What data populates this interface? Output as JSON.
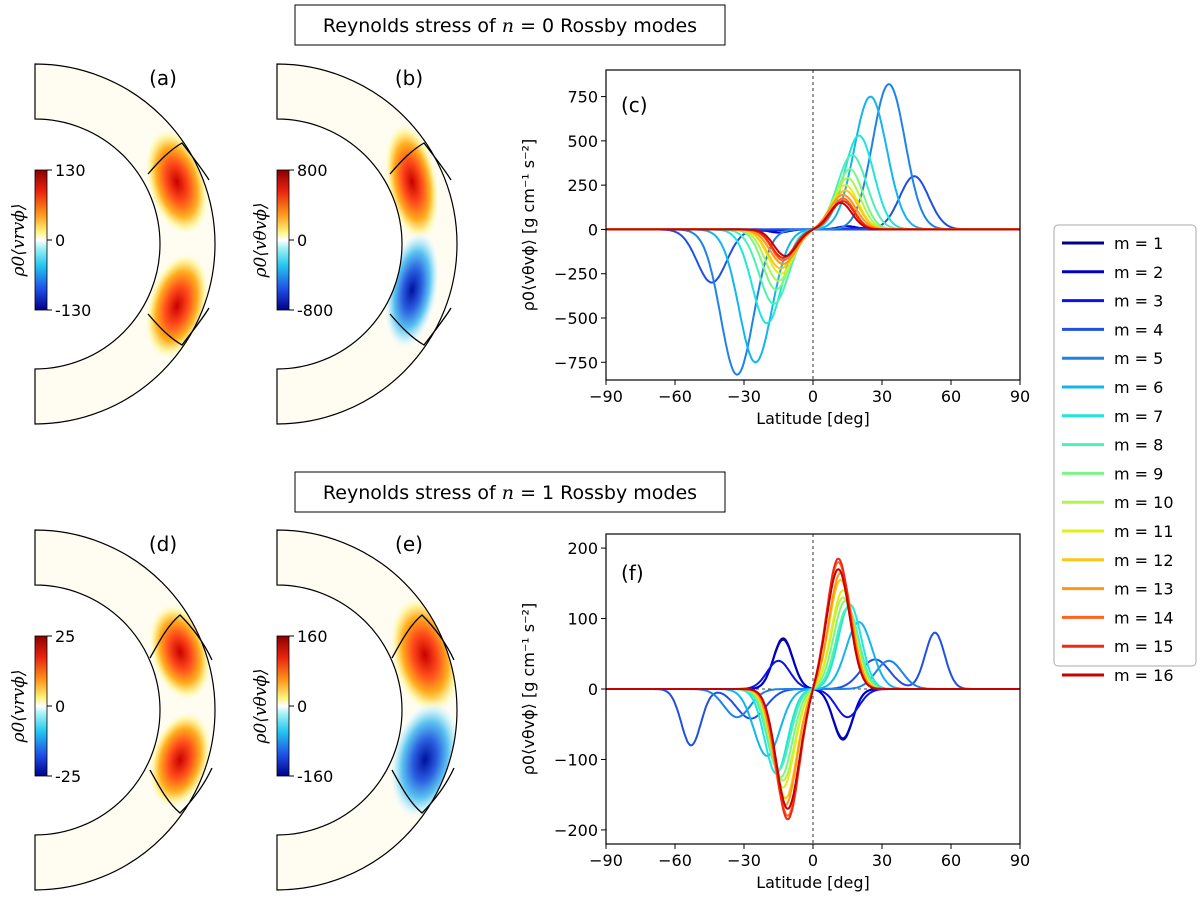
{
  "titles": {
    "top": [
      "Reynolds stress of ",
      "n",
      " = 0 Rossby modes"
    ],
    "bottom": [
      "Reynolds stress of ",
      "n",
      " = 1 Rossby modes"
    ]
  },
  "panels": {
    "a": {
      "label": "(a)",
      "cbar_label": "ρ0⟨vrvϕ⟩",
      "cbar_max": "130",
      "cbar_mid": "0",
      "cbar_min": "-130"
    },
    "b": {
      "label": "(b)",
      "cbar_label": "ρ0⟨vθvϕ⟩",
      "cbar_max": "800",
      "cbar_mid": "0",
      "cbar_min": "-800"
    },
    "c": {
      "label": "(c)"
    },
    "d": {
      "label": "(d)",
      "cbar_label": "ρ0⟨vrvϕ⟩",
      "cbar_max": "25",
      "cbar_mid": "0",
      "cbar_min": "-25"
    },
    "e": {
      "label": "(e)",
      "cbar_label": "ρ0⟨vθvϕ⟩",
      "cbar_max": "160",
      "cbar_mid": "0",
      "cbar_min": "-160"
    },
    "f": {
      "label": "(f)"
    }
  },
  "colors": [
    "#00008b",
    "#0000c8",
    "#0a14e6",
    "#1e50e6",
    "#1e82e8",
    "#14b4ef",
    "#1ee6dc",
    "#4cf0b4",
    "#7cf584",
    "#aef550",
    "#e2ee14",
    "#ffc514",
    "#ff9614",
    "#ff641e",
    "#f02814",
    "#c80000"
  ],
  "chart_data": [
    {
      "type": "line",
      "panel": "(c)",
      "xlabel": "Latitude [deg]",
      "ylabel": "ρ0⟨vθvϕ⟩ [g cm⁻¹ s⁻²]",
      "xlim": [
        -90,
        90
      ],
      "ylim": [
        -850,
        900
      ],
      "xticks": [
        -90,
        -60,
        -30,
        0,
        30,
        60,
        90
      ],
      "yticks": [
        -750,
        -500,
        -250,
        0,
        250,
        500,
        750
      ],
      "series": [
        {
          "name": "m = 1",
          "peak": 0,
          "peak_lat": 18,
          "width": 6
        },
        {
          "name": "m = 2",
          "peak": 18,
          "peak_lat": 15,
          "width": 6
        },
        {
          "name": "m = 3",
          "peak": 8,
          "peak_lat": 20,
          "width": 7
        },
        {
          "name": "m = 4",
          "peak": 300,
          "peak_lat": 44,
          "width": 9
        },
        {
          "name": "m = 5",
          "peak": 820,
          "peak_lat": 33,
          "width": 10
        },
        {
          "name": "m = 6",
          "peak": 750,
          "peak_lat": 25,
          "width": 10
        },
        {
          "name": "m = 7",
          "peak": 530,
          "peak_lat": 20,
          "width": 9
        },
        {
          "name": "m = 8",
          "peak": 420,
          "peak_lat": 17,
          "width": 9
        },
        {
          "name": "m = 9",
          "peak": 340,
          "peak_lat": 16,
          "width": 8
        },
        {
          "name": "m = 10",
          "peak": 290,
          "peak_lat": 15,
          "width": 8
        },
        {
          "name": "m = 11",
          "peak": 250,
          "peak_lat": 14,
          "width": 8
        },
        {
          "name": "m = 12",
          "peak": 220,
          "peak_lat": 14,
          "width": 8
        },
        {
          "name": "m = 13",
          "peak": 195,
          "peak_lat": 13,
          "width": 8
        },
        {
          "name": "m = 14",
          "peak": 175,
          "peak_lat": 13,
          "width": 7
        },
        {
          "name": "m = 15",
          "peak": 160,
          "peak_lat": 13,
          "width": 7
        },
        {
          "name": "m = 16",
          "peak": 150,
          "peak_lat": 12,
          "width": 7
        }
      ]
    },
    {
      "type": "line",
      "panel": "(f)",
      "xlabel": "Latitude [deg]",
      "ylabel": "ρ0⟨vθvϕ⟩ [g cm⁻¹ s⁻²]",
      "xlim": [
        -90,
        90
      ],
      "ylim": [
        -220,
        220
      ],
      "xticks": [
        -90,
        -60,
        -30,
        0,
        30,
        60,
        90
      ],
      "yticks": [
        -200,
        -100,
        0,
        100,
        200
      ],
      "series": [
        {
          "name": "m = 1",
          "peak": -72,
          "peak_lat": 13,
          "width": 6
        },
        {
          "name": "m = 2",
          "peak": -70,
          "peak_lat": 13,
          "width": 6
        },
        {
          "name": "m = 3",
          "peak": -40,
          "peak_lat": 15,
          "width": 7
        },
        {
          "name": "m = 4",
          "peak": 80,
          "peak_lat": 53,
          "width": 6,
          "peak2": 42,
          "peak2_lat": 27,
          "width2": 9
        },
        {
          "name": "m = 5",
          "peak": 40,
          "peak_lat": 33,
          "width": 8
        },
        {
          "name": "m = 6",
          "peak": 95,
          "peak_lat": 20,
          "width": 8
        },
        {
          "name": "m = 7",
          "peak": 120,
          "peak_lat": 16,
          "width": 7
        },
        {
          "name": "m = 8",
          "peak": 115,
          "peak_lat": 15,
          "width": 7
        },
        {
          "name": "m = 9",
          "peak": 125,
          "peak_lat": 14,
          "width": 7
        },
        {
          "name": "m = 10",
          "peak": 130,
          "peak_lat": 13,
          "width": 7
        },
        {
          "name": "m = 11",
          "peak": 140,
          "peak_lat": 13,
          "width": 7
        },
        {
          "name": "m = 12",
          "peak": 155,
          "peak_lat": 12,
          "width": 7
        },
        {
          "name": "m = 13",
          "peak": 165,
          "peak_lat": 12,
          "width": 7
        },
        {
          "name": "m = 14",
          "peak": 180,
          "peak_lat": 11,
          "width": 7
        },
        {
          "name": "m = 15",
          "peak": 185,
          "peak_lat": 11,
          "width": 7
        },
        {
          "name": "m = 16",
          "peak": 170,
          "peak_lat": 11,
          "width": 7
        }
      ]
    }
  ]
}
